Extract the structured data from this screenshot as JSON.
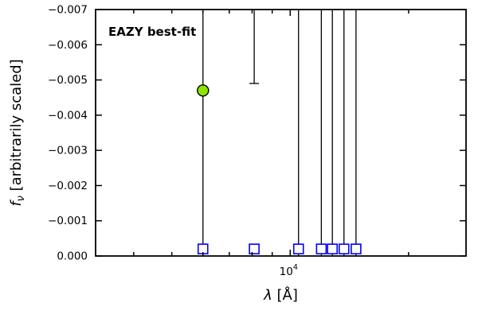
{
  "chart_data": {
    "type": "scatter",
    "title": "",
    "annotation": {
      "text": "EAZY best-fit",
      "color": "#ff0000"
    },
    "xlabel": {
      "symbol": "λ",
      "rest": " [Å]"
    },
    "ylabel": {
      "symbol": "f",
      "subscript": "ν",
      "rest": " [arbitrarily scaled]"
    },
    "xscale": "log",
    "xlim": [
      3200,
      28000
    ],
    "ylim": [
      0.0,
      -0.007
    ],
    "grid": false,
    "legend": false,
    "axis_color": "#000000",
    "yticks": [
      {
        "value": 0.0,
        "label": "0.000"
      },
      {
        "value": -0.001,
        "label": "−0.001"
      },
      {
        "value": -0.002,
        "label": "−0.002"
      },
      {
        "value": -0.003,
        "label": "−0.003"
      },
      {
        "value": -0.004,
        "label": "−0.004"
      },
      {
        "value": -0.005,
        "label": "−0.005"
      },
      {
        "value": -0.006,
        "label": "−0.006"
      },
      {
        "value": -0.007,
        "label": "−0.007"
      }
    ],
    "xticks_major": [
      {
        "value": 10000,
        "label_base": "10",
        "label_exp": "4"
      }
    ],
    "xticks_minor": [
      4000,
      5000,
      6000,
      7000,
      8000,
      9000,
      20000
    ],
    "observed_points": [
      {
        "lambda": 6000,
        "flux": -0.0047,
        "marker": "circle",
        "fill": "#8CE600",
        "edge": "#000000"
      }
    ],
    "error_lines": [
      {
        "lambda": 6000,
        "flux_from": -0.007,
        "flux_to": 0.0,
        "cap_bottom": false
      },
      {
        "lambda": 8100,
        "flux_from": -0.007,
        "flux_to": -0.0049,
        "cap_bottom": true
      },
      {
        "lambda": 10500,
        "flux_from": -0.007,
        "flux_to": 0.0,
        "cap_bottom": false
      },
      {
        "lambda": 12000,
        "flux_from": -0.007,
        "flux_to": 0.0,
        "cap_bottom": false
      },
      {
        "lambda": 12800,
        "flux_from": -0.007,
        "flux_to": 0.0,
        "cap_bottom": false
      },
      {
        "lambda": 13700,
        "flux_from": -0.007,
        "flux_to": 0.0,
        "cap_bottom": false
      },
      {
        "lambda": 14700,
        "flux_from": -0.007,
        "flux_to": 0.0,
        "cap_bottom": false
      }
    ],
    "model_squares": {
      "flux": -0.0002,
      "color": "#0000ff",
      "lambdas": [
        6000,
        8100,
        10500,
        12000,
        12800,
        13700,
        14700
      ]
    }
  }
}
